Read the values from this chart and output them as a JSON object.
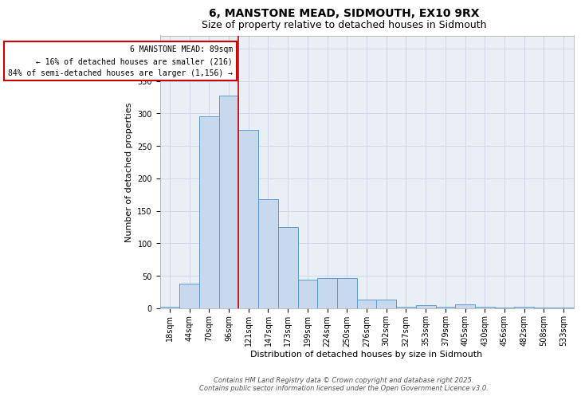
{
  "title_line1": "6, MANSTONE MEAD, SIDMOUTH, EX10 9RX",
  "title_line2": "Size of property relative to detached houses in Sidmouth",
  "xlabel": "Distribution of detached houses by size in Sidmouth",
  "ylabel": "Number of detached properties",
  "categories": [
    "18sqm",
    "44sqm",
    "70sqm",
    "96sqm",
    "121sqm",
    "147sqm",
    "173sqm",
    "199sqm",
    "224sqm",
    "250sqm",
    "276sqm",
    "302sqm",
    "327sqm",
    "353sqm",
    "379sqm",
    "405sqm",
    "430sqm",
    "456sqm",
    "482sqm",
    "508sqm",
    "533sqm"
  ],
  "values": [
    2,
    38,
    295,
    328,
    275,
    168,
    125,
    44,
    46,
    47,
    13,
    14,
    3,
    5,
    3,
    6,
    3,
    1,
    2,
    1,
    1
  ],
  "bar_color": "#c9d9ed",
  "bar_edge_color": "#5b9bd5",
  "red_line_x": 3.5,
  "annotation_text": "6 MANSTONE MEAD: 89sqm\n← 16% of detached houses are smaller (216)\n84% of semi-detached houses are larger (1,156) →",
  "annotation_box_color": "#ffffff",
  "annotation_box_edge": "#cc0000",
  "grid_color": "#d0d8e8",
  "background_color": "#eaeef5",
  "ylim": [
    0,
    420
  ],
  "yticks": [
    0,
    50,
    100,
    150,
    200,
    250,
    300,
    350,
    400
  ],
  "footer_line1": "Contains HM Land Registry data © Crown copyright and database right 2025.",
  "footer_line2": "Contains public sector information licensed under the Open Government Licence v3.0.",
  "title_fontsize": 10,
  "subtitle_fontsize": 9,
  "axis_label_fontsize": 8,
  "tick_fontsize": 7,
  "annotation_fontsize": 7,
  "footer_fontsize": 6
}
